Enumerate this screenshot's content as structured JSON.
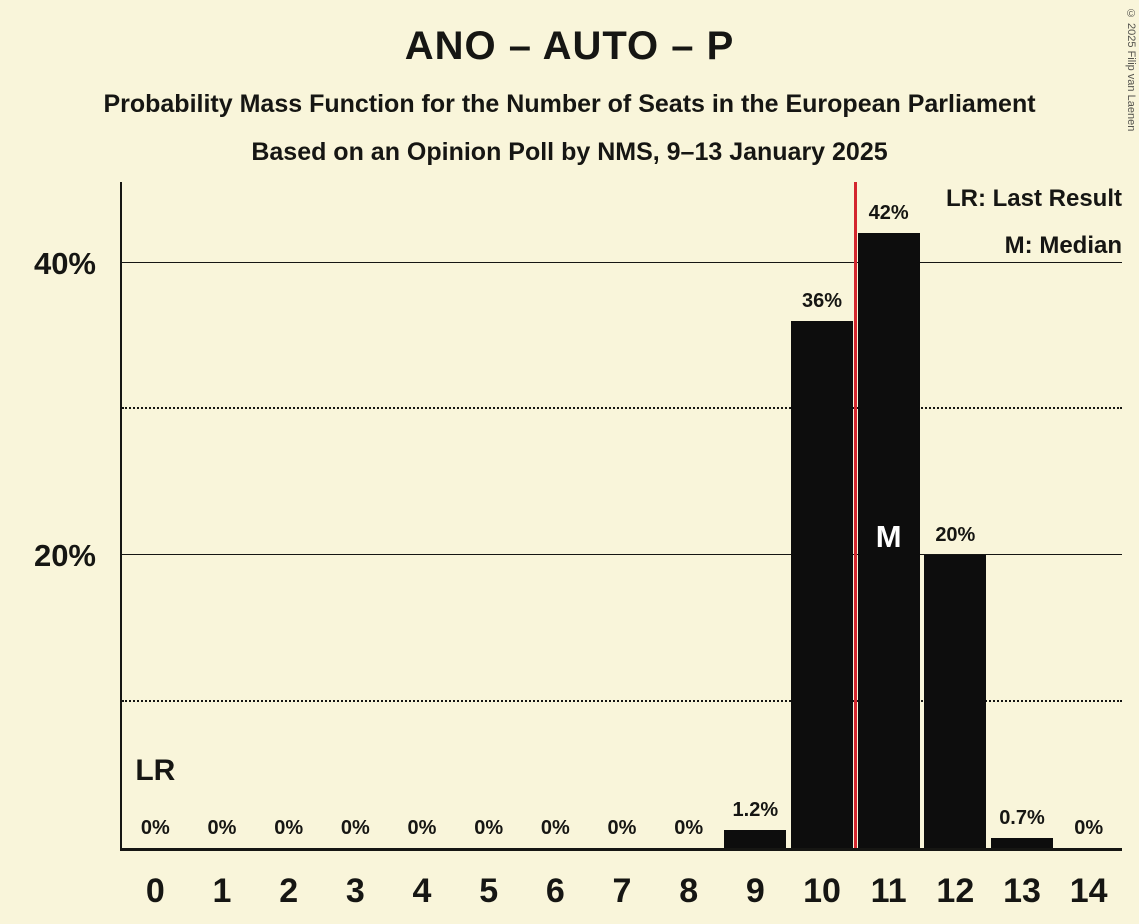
{
  "page": {
    "copyright": "© 2025 Filip van Laenen",
    "background_color": "#f9f5da",
    "text_color": "#161613"
  },
  "header": {
    "title": "ANO – AUTO – P",
    "subtitle1": "Probability Mass Function for the Number of Seats in the European Parliament",
    "subtitle2": "Based on an Opinion Poll by NMS, 9–13 January 2025"
  },
  "legend": {
    "lr_label": "LR: Last Result",
    "m_label": "M: Median"
  },
  "chart_data": {
    "type": "bar",
    "title": "ANO – AUTO – P",
    "xlabel": "",
    "ylabel": "",
    "categories": [
      "0",
      "1",
      "2",
      "3",
      "4",
      "5",
      "6",
      "7",
      "8",
      "9",
      "10",
      "11",
      "12",
      "13",
      "14"
    ],
    "values": [
      0,
      0,
      0,
      0,
      0,
      0,
      0,
      0,
      0,
      1.2,
      36,
      42,
      20,
      0.7,
      0
    ],
    "value_labels": [
      "0%",
      "0%",
      "0%",
      "0%",
      "0%",
      "0%",
      "0%",
      "0%",
      "0%",
      "1.2%",
      "36%",
      "42%",
      "20%",
      "0.7%",
      "0%"
    ],
    "ylim": [
      0,
      45.5
    ],
    "y_ticks": [
      {
        "value": 20,
        "label": "20%"
      },
      {
        "value": 40,
        "label": "40%"
      }
    ],
    "solid_gridlines": [
      20,
      40
    ],
    "dotted_gridlines": [
      10,
      30
    ],
    "bar_color": "#0d0d0d",
    "median_seat": 11,
    "median_marker": "M",
    "last_result_seat": 0,
    "last_result_marker": "LR",
    "red_line_x": 10.5,
    "red_line_color": "#d4262e"
  }
}
